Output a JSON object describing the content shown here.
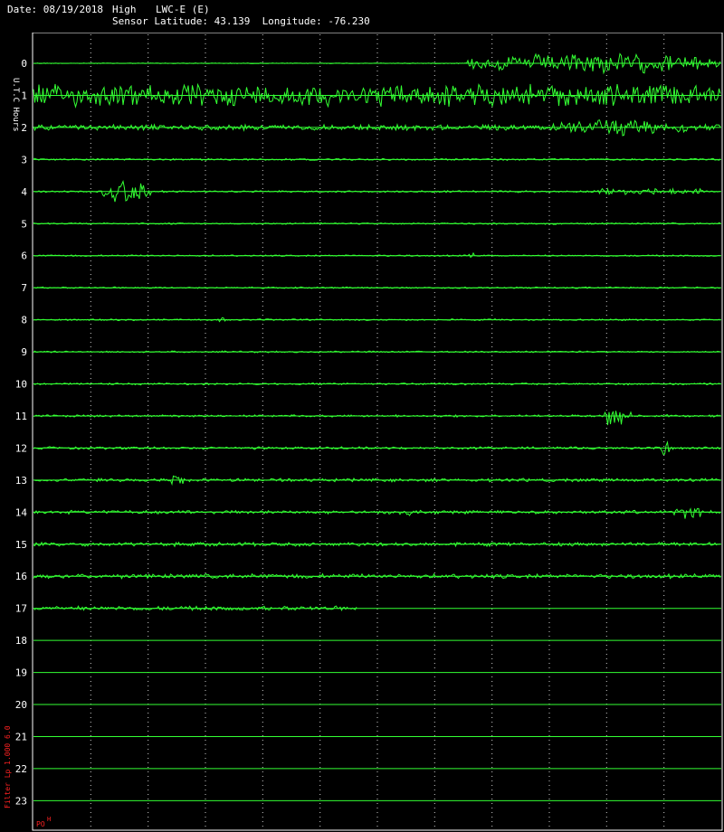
{
  "header": {
    "date_label": "Date: 08/19/2018",
    "band": "High",
    "station": "LWC-E (E)",
    "sensor_line": "Sensor Latitude: 43.139  Longitude: -76.230"
  },
  "side": {
    "y_axis_label": "U.T.C Hours",
    "filter_label": "Filter  Lp 1.000 6.0",
    "badge_main": "PO",
    "badge_sup": "H"
  },
  "colors": {
    "background": "#000000",
    "trace": "#33ff33",
    "baseline": "#33ff33",
    "grid_minor": "#cccccc",
    "frame": "#ffffff",
    "filter_text": "#ff2222"
  },
  "chart_data": {
    "type": "line",
    "title": "",
    "xlabel": "",
    "ylabel": "U.T.C Hours",
    "y_categories": [
      "0",
      "1",
      "2",
      "3",
      "4",
      "5",
      "6",
      "7",
      "8",
      "9",
      "10",
      "11",
      "12",
      "13",
      "14",
      "15",
      "16",
      "17",
      "18",
      "19",
      "20",
      "21",
      "22",
      "23"
    ],
    "x_range_fraction": [
      0,
      1
    ],
    "vertical_gridlines": 12,
    "grid": true,
    "series": [
      {
        "hour": "0",
        "noise": 0.5,
        "recorded_until": 1.0,
        "events": [
          {
            "start": 0.63,
            "end": 1.0,
            "amp": 14
          }
        ]
      },
      {
        "hour": "1",
        "noise": 14,
        "recorded_until": 1.0,
        "events": []
      },
      {
        "hour": "2",
        "noise": 3.5,
        "recorded_until": 1.0,
        "events": [
          {
            "start": 0.75,
            "end": 0.95,
            "amp": 9
          }
        ]
      },
      {
        "hour": "3",
        "noise": 1.2,
        "recorded_until": 1.0,
        "events": []
      },
      {
        "hour": "4",
        "noise": 1.2,
        "recorded_until": 1.0,
        "events": [
          {
            "start": 0.1,
            "end": 0.17,
            "amp": 14
          },
          {
            "start": 0.82,
            "end": 0.97,
            "amp": 4
          }
        ]
      },
      {
        "hour": "5",
        "noise": 1.0,
        "recorded_until": 1.0,
        "events": []
      },
      {
        "hour": "6",
        "noise": 1.0,
        "recorded_until": 1.0,
        "events": [
          {
            "start": 0.63,
            "end": 0.64,
            "amp": 4
          }
        ]
      },
      {
        "hour": "7",
        "noise": 1.0,
        "recorded_until": 1.0,
        "events": []
      },
      {
        "hour": "8",
        "noise": 1.0,
        "recorded_until": 1.0,
        "events": [
          {
            "start": 0.27,
            "end": 0.28,
            "amp": 3
          }
        ]
      },
      {
        "hour": "9",
        "noise": 1.0,
        "recorded_until": 1.0,
        "events": []
      },
      {
        "hour": "10",
        "noise": 1.2,
        "recorded_until": 1.0,
        "events": []
      },
      {
        "hour": "11",
        "noise": 1.4,
        "recorded_until": 1.0,
        "events": [
          {
            "start": 0.83,
            "end": 0.87,
            "amp": 16
          }
        ]
      },
      {
        "hour": "12",
        "noise": 1.6,
        "recorded_until": 1.0,
        "events": [
          {
            "start": 0.91,
            "end": 0.93,
            "amp": 9
          }
        ]
      },
      {
        "hour": "13",
        "noise": 2.0,
        "recorded_until": 1.0,
        "events": [
          {
            "start": 0.2,
            "end": 0.22,
            "amp": 7
          }
        ]
      },
      {
        "hour": "14",
        "noise": 2.2,
        "recorded_until": 1.0,
        "events": [
          {
            "start": 0.53,
            "end": 0.56,
            "amp": 4
          },
          {
            "start": 0.93,
            "end": 0.97,
            "amp": 6
          }
        ]
      },
      {
        "hour": "15",
        "noise": 2.5,
        "recorded_until": 1.0,
        "events": []
      },
      {
        "hour": "16",
        "noise": 2.8,
        "recorded_until": 1.0,
        "events": []
      },
      {
        "hour": "17",
        "noise": 2.8,
        "recorded_until": 0.47,
        "events": []
      },
      {
        "hour": "18",
        "noise": 0,
        "recorded_until": 0,
        "events": []
      },
      {
        "hour": "19",
        "noise": 0,
        "recorded_until": 0,
        "events": []
      },
      {
        "hour": "20",
        "noise": 0,
        "recorded_until": 0,
        "events": []
      },
      {
        "hour": "21",
        "noise": 0,
        "recorded_until": 0,
        "events": []
      },
      {
        "hour": "22",
        "noise": 0,
        "recorded_until": 0,
        "events": []
      },
      {
        "hour": "23",
        "noise": 0,
        "recorded_until": 0,
        "events": []
      }
    ]
  }
}
